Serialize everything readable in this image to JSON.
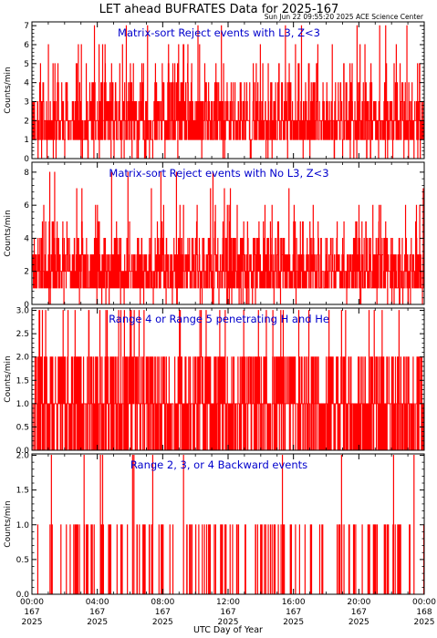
{
  "title": "LET ahead BUFRATES Data for 2025-167",
  "timestamp": "Sun Jun 22 09:55:20 2025 ACE Science Center",
  "x_axis_label": "UTC Day of Year",
  "colors": {
    "trace": "#ff0000",
    "panel_title": "#0000cc",
    "axes": "#000000"
  },
  "chart_data": [
    {
      "type": "bar",
      "title": "Matrix-sort Reject events with L3, Z<3",
      "ylabel": "Counts/min",
      "ylim": [
        0,
        7.2
      ],
      "yticks": [
        "0",
        "1",
        "2",
        "3",
        "4",
        "5",
        "6",
        "7"
      ],
      "ytick_values": [
        0,
        1,
        2,
        3,
        4,
        5,
        6,
        7
      ],
      "level_weights": [
        0.04,
        0.33,
        0.33,
        0.17,
        0.08,
        0.035,
        0.01,
        0.005
      ],
      "peak": 7,
      "seed": 11
    },
    {
      "type": "bar",
      "title": "Matrix-sort Reject events with No L3, Z<3",
      "ylabel": "Counts/min",
      "ylim": [
        0,
        8.6
      ],
      "yticks": [
        "0",
        "2",
        "4",
        "6",
        "8"
      ],
      "ytick_values": [
        0,
        2,
        4,
        6,
        8
      ],
      "level_weights": [
        0.03,
        0.3,
        0.32,
        0.18,
        0.1,
        0.04,
        0.02,
        0.006,
        0.004
      ],
      "peak": 8,
      "seed": 23
    },
    {
      "type": "bar",
      "title": "Range 4 or Range 5 penetrating H and He",
      "ylabel": "Counts/min",
      "ylim": [
        0,
        3.05
      ],
      "yticks": [
        "0.0",
        "0.5",
        "1.0",
        "1.5",
        "2.0",
        "2.5",
        "3.0"
      ],
      "ytick_values": [
        0,
        0.5,
        1,
        1.5,
        2,
        2.5,
        3
      ],
      "level_weights": [
        0.3,
        0.45,
        0.22,
        0.03
      ],
      "peak": 3,
      "seed": 37
    },
    {
      "type": "bar",
      "title": "Range 2, 3, or 4 Backward events",
      "ylabel": "Counts/min",
      "ylim": [
        0,
        2.02
      ],
      "yticks": [
        "0.0",
        "0.5",
        "1.0",
        "1.5",
        "2.0"
      ],
      "ytick_values": [
        0,
        0.5,
        1,
        1.5,
        2
      ],
      "level_weights": [
        0.88,
        0.11,
        0.01
      ],
      "peak": 2,
      "seed": 53
    }
  ],
  "x_ticks": [
    {
      "time": "00:00",
      "day": "167",
      "year": "2025",
      "hour": 0
    },
    {
      "time": "04:00",
      "day": "167",
      "year": "2025",
      "hour": 4
    },
    {
      "time": "08:00",
      "day": "167",
      "year": "2025",
      "hour": 8
    },
    {
      "time": "12:00",
      "day": "167",
      "year": "2025",
      "hour": 12
    },
    {
      "time": "16:00",
      "day": "167",
      "year": "2025",
      "hour": 16
    },
    {
      "time": "20:00",
      "day": "167",
      "year": "2025",
      "hour": 20
    },
    {
      "time": "00:00",
      "day": "168",
      "year": "2025",
      "hour": 24
    }
  ],
  "x_range_hours": [
    0,
    24
  ]
}
